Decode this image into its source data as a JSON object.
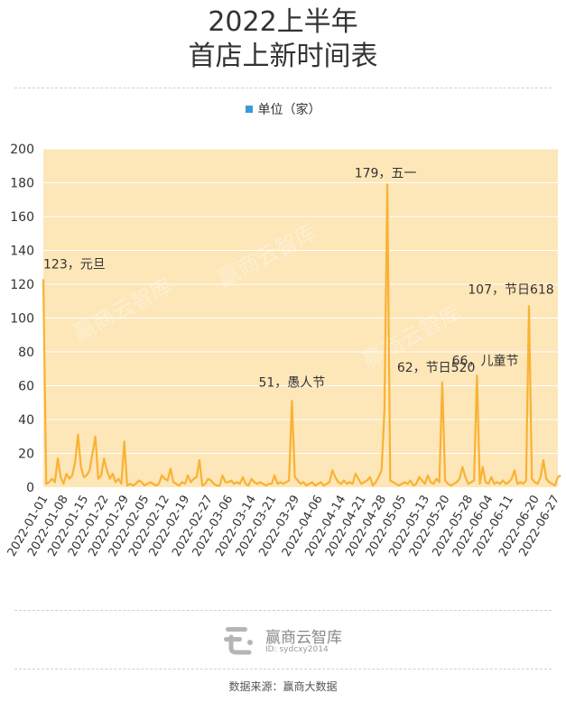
{
  "title_line1": "2022上半年",
  "title_line2": "首店上新时间表",
  "legend": {
    "label": "单位（家）",
    "color": "#3a9ad9"
  },
  "watermark": "赢商云智库",
  "brand": {
    "name": "赢商云智库",
    "id": "ID: sydcxy2014"
  },
  "source": "数据来源：赢商大数据",
  "colors": {
    "plot_bg": "#fde6b8",
    "line": "#f9b233",
    "grid": "#ffffff"
  },
  "chart_data": {
    "type": "line",
    "title": "2022上半年 首店上新时间表",
    "xlabel": "",
    "ylabel": "单位（家）",
    "ylim": [
      0,
      200
    ],
    "yticks": [
      0,
      20,
      40,
      60,
      80,
      100,
      120,
      140,
      160,
      180,
      200
    ],
    "grid": true,
    "legend_position": "top-center",
    "x_start": "2022-01-01",
    "x_end": "2022-06-28",
    "x_tick_labels": [
      "2022-01-01",
      "2022-01-08",
      "2022-01-15",
      "2022-01-22",
      "2022-01-29",
      "2022-02-05",
      "2022-02-12",
      "2022-02-19",
      "2022-02-27",
      "2022-03-06",
      "2022-03-14",
      "2022-03-21",
      "2022-03-29",
      "2022-04-06",
      "2022-04-14",
      "2022-04-21",
      "2022-04-28",
      "2022-05-05",
      "2022-05-13",
      "2022-05-20",
      "2022-05-28",
      "2022-06-04",
      "2022-06-11",
      "2022-06-20",
      "2022-06-27"
    ],
    "series": [
      {
        "name": "单位（家）",
        "values": [
          123,
          2,
          3,
          5,
          3,
          17,
          6,
          2,
          8,
          5,
          7,
          15,
          31,
          12,
          6,
          7,
          10,
          20,
          30,
          5,
          7,
          17,
          10,
          5,
          8,
          3,
          5,
          2,
          27,
          1,
          2,
          1,
          2,
          4,
          3,
          1,
          2,
          3,
          2,
          1,
          2,
          7,
          5,
          4,
          11,
          3,
          2,
          1,
          3,
          2,
          7,
          3,
          5,
          6,
          16,
          1,
          2,
          5,
          4,
          2,
          1,
          1,
          7,
          3,
          3,
          4,
          2,
          3,
          2,
          6,
          2,
          1,
          5,
          3,
          2,
          3,
          2,
          1,
          2,
          2,
          7,
          2,
          3,
          2,
          3,
          4,
          51,
          6,
          4,
          2,
          3,
          1,
          2,
          3,
          1,
          2,
          3,
          1,
          2,
          3,
          10,
          6,
          3,
          2,
          4,
          2,
          3,
          2,
          8,
          5,
          2,
          3,
          4,
          6,
          1,
          3,
          6,
          10,
          45,
          179,
          4,
          3,
          2,
          1,
          2,
          3,
          2,
          4,
          1,
          2,
          6,
          4,
          2,
          7,
          3,
          2,
          5,
          3,
          62,
          4,
          2,
          1,
          2,
          3,
          5,
          12,
          6,
          2,
          3,
          4,
          66,
          2,
          12,
          3,
          2,
          6,
          2,
          3,
          2,
          4,
          2,
          3,
          5,
          10,
          2,
          3,
          2,
          4,
          107,
          5,
          3,
          2,
          6,
          16,
          5,
          3,
          2,
          1,
          6,
          7
        ],
        "color": "#f9b233"
      }
    ],
    "annotations": [
      {
        "text": "123，元旦",
        "x_index": 0,
        "value": 123
      },
      {
        "text": "51，愚人节",
        "x_index": 86,
        "value": 51
      },
      {
        "text": "179，五一",
        "x_index": 119,
        "value": 179
      },
      {
        "text": "62，节日520",
        "x_index": 139,
        "value": 62
      },
      {
        "text": "66，儿童节",
        "x_index": 151,
        "value": 66
      },
      {
        "text": "107，节日618",
        "x_index": 168,
        "value": 107
      }
    ]
  }
}
